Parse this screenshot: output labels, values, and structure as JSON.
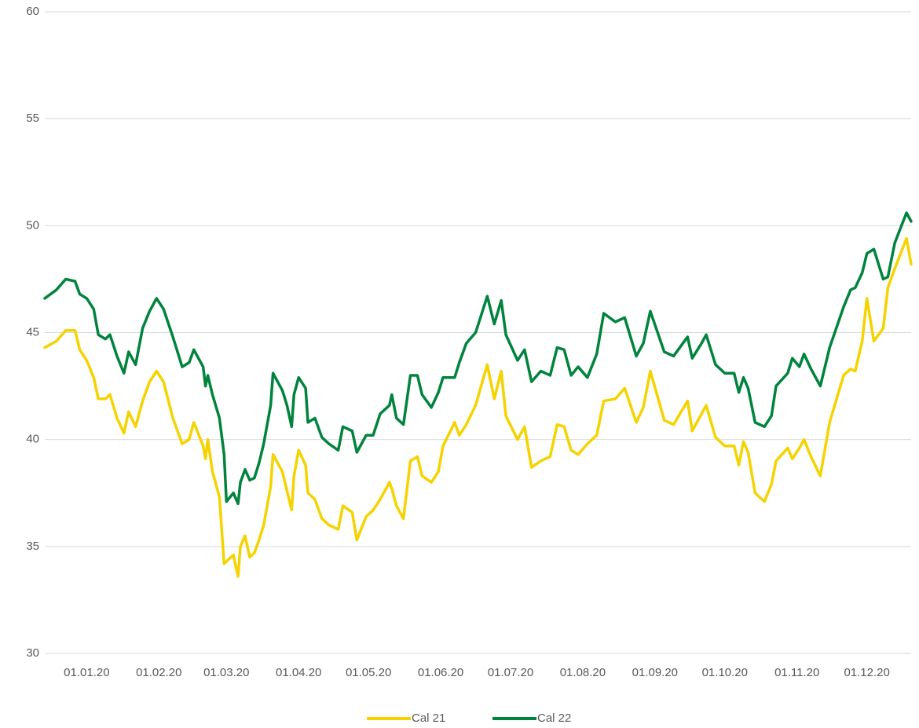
{
  "chart_data": {
    "type": "line",
    "x": [
      "14.12.19",
      "19.12.19",
      "23.12.19",
      "27.12.19",
      "29.12.19",
      "01.01.20",
      "04.01.20",
      "06.01.20",
      "09.01.20",
      "11.01.20",
      "14.01.20",
      "17.01.20",
      "19.01.20",
      "22.01.20",
      "25.01.20",
      "28.01.20",
      "31.01.20",
      "03.02.20",
      "07.02.20",
      "11.02.20",
      "14.02.20",
      "16.02.20",
      "20.02.20",
      "21.02.20",
      "22.02.20",
      "24.02.20",
      "27.02.20",
      "29.02.20",
      "01.03.20",
      "04.03.20",
      "06.03.20",
      "07.03.20",
      "09.03.20",
      "11.03.20",
      "13.03.20",
      "15.03.20",
      "17.03.20",
      "20.03.20",
      "21.03.20",
      "25.03.20",
      "27.03.20",
      "29.03.20",
      "30.03.20",
      "01.04.20",
      "04.04.20",
      "05.04.20",
      "08.04.20",
      "11.04.20",
      "14.04.20",
      "18.04.20",
      "20.04.20",
      "24.04.20",
      "26.04.20",
      "30.04.20",
      "03.05.20",
      "06.05.20",
      "10.05.20",
      "11.05.20",
      "13.05.20",
      "16.05.20",
      "19.05.20",
      "22.05.20",
      "24.05.20",
      "28.05.20",
      "31.05.20",
      "02.06.20",
      "07.06.20",
      "09.06.20",
      "12.06.20",
      "16.06.20",
      "21.06.20",
      "24.06.20",
      "27.06.20",
      "29.06.20",
      "04.07.20",
      "07.07.20",
      "10.07.20",
      "14.07.20",
      "18.07.20",
      "21.07.20",
      "24.07.20",
      "27.07.20",
      "30.07.20",
      "03.08.20",
      "07.08.20",
      "10.08.20",
      "15.08.20",
      "19.08.20",
      "24.08.20",
      "27.08.20",
      "30.08.20",
      "05.09.20",
      "09.09.20",
      "15.09.20",
      "17.09.20",
      "21.09.20",
      "23.09.20",
      "27.09.20",
      "01.10.20",
      "05.10.20",
      "07.10.20",
      "09.10.20",
      "11.10.20",
      "14.10.20",
      "18.10.20",
      "21.10.20",
      "23.10.20",
      "28.10.20",
      "30.10.20",
      "02.11.20",
      "04.11.20",
      "07.11.20",
      "11.11.20",
      "15.11.20",
      "21.11.20",
      "24.11.20",
      "26.11.20",
      "29.11.20",
      "01.12.20",
      "04.12.20",
      "08.12.20",
      "10.12.20",
      "13.12.20",
      "18.12.20",
      "20.12.20"
    ],
    "series": [
      {
        "name": "Cal 21",
        "color": "#f5d300",
        "values": [
          44.3,
          44.6,
          45.1,
          45.1,
          44.2,
          43.7,
          42.9,
          41.9,
          41.9,
          42.1,
          41.0,
          40.3,
          41.3,
          40.6,
          41.8,
          42.7,
          43.2,
          42.7,
          41.0,
          39.8,
          40.0,
          40.8,
          39.7,
          39.1,
          40.0,
          38.5,
          37.3,
          34.2,
          34.3,
          34.6,
          33.6,
          35.0,
          35.5,
          34.5,
          34.7,
          35.3,
          36.0,
          37.8,
          39.3,
          38.5,
          37.6,
          36.7,
          38.3,
          39.5,
          38.8,
          37.5,
          37.2,
          36.3,
          36.0,
          35.8,
          36.9,
          36.6,
          35.3,
          36.4,
          36.7,
          37.2,
          38.0,
          37.7,
          36.9,
          36.3,
          39.0,
          39.2,
          38.3,
          38.0,
          38.5,
          39.7,
          40.8,
          40.2,
          40.7,
          41.6,
          43.5,
          41.9,
          43.2,
          41.1,
          40.0,
          40.6,
          38.7,
          39.0,
          39.2,
          40.7,
          40.6,
          39.5,
          39.3,
          39.8,
          40.2,
          41.8,
          41.9,
          42.4,
          40.8,
          41.5,
          43.2,
          40.9,
          40.7,
          41.8,
          40.4,
          41.2,
          41.6,
          40.1,
          39.7,
          39.7,
          38.8,
          39.9,
          39.4,
          37.5,
          37.1,
          37.9,
          39.0,
          39.6,
          39.1,
          39.6,
          40.0,
          39.2,
          38.3,
          40.8,
          43.0,
          43.3,
          43.2,
          44.6,
          46.6,
          44.6,
          45.2,
          47.1,
          48.0,
          49.4,
          48.2
        ]
      },
      {
        "name": "Cal 22",
        "color": "#00843d",
        "values": [
          46.6,
          47.0,
          47.5,
          47.4,
          46.8,
          46.6,
          46.1,
          44.9,
          44.7,
          44.9,
          43.9,
          43.1,
          44.1,
          43.5,
          45.2,
          46.0,
          46.6,
          46.1,
          44.8,
          43.4,
          43.6,
          44.2,
          43.4,
          42.5,
          43.0,
          42.1,
          41.0,
          39.3,
          37.1,
          37.5,
          37.0,
          38.0,
          38.6,
          38.1,
          38.2,
          38.9,
          39.8,
          41.6,
          43.1,
          42.3,
          41.6,
          40.6,
          42.1,
          42.9,
          42.4,
          40.8,
          41.0,
          40.1,
          39.8,
          39.5,
          40.6,
          40.4,
          39.4,
          40.2,
          40.2,
          41.2,
          41.6,
          42.1,
          41.0,
          40.7,
          43.0,
          43.0,
          42.1,
          41.5,
          42.2,
          42.9,
          42.9,
          43.6,
          44.5,
          45.0,
          46.7,
          45.4,
          46.5,
          44.9,
          43.7,
          44.2,
          42.7,
          43.2,
          43.0,
          44.3,
          44.2,
          43.0,
          43.4,
          42.9,
          44.0,
          45.9,
          45.5,
          45.7,
          43.9,
          44.5,
          46.0,
          44.1,
          43.9,
          44.8,
          43.8,
          44.5,
          44.9,
          43.5,
          43.1,
          43.1,
          42.2,
          42.9,
          42.4,
          40.8,
          40.6,
          41.1,
          42.5,
          43.1,
          43.8,
          43.4,
          44.0,
          43.3,
          42.5,
          44.3,
          46.2,
          47.0,
          47.1,
          47.8,
          48.7,
          48.9,
          47.5,
          47.6,
          49.2,
          50.6,
          50.2
        ]
      }
    ],
    "xlim": [
      "14.12.19",
      "20.12.20"
    ],
    "xticks": [
      "01.01.20",
      "01.02.20",
      "01.03.20",
      "01.04.20",
      "01.05.20",
      "01.06.20",
      "01.07.20",
      "01.08.20",
      "01.09.20",
      "01.10.20",
      "01.11.20",
      "01.12.20"
    ],
    "ylim": [
      30,
      60
    ],
    "yticks": [
      30,
      35,
      40,
      45,
      50,
      55,
      60
    ],
    "grid": true,
    "legend": "bottom"
  }
}
